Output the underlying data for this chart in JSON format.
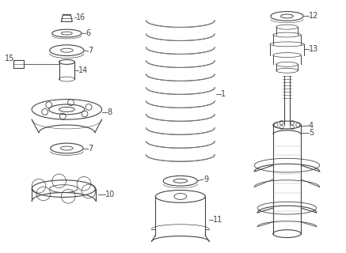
{
  "background_color": "#ffffff",
  "line_color": "#444444",
  "label_color": "#222222",
  "label_fontsize": 7,
  "fig_width": 4.37,
  "fig_height": 3.2,
  "dpi": 100
}
